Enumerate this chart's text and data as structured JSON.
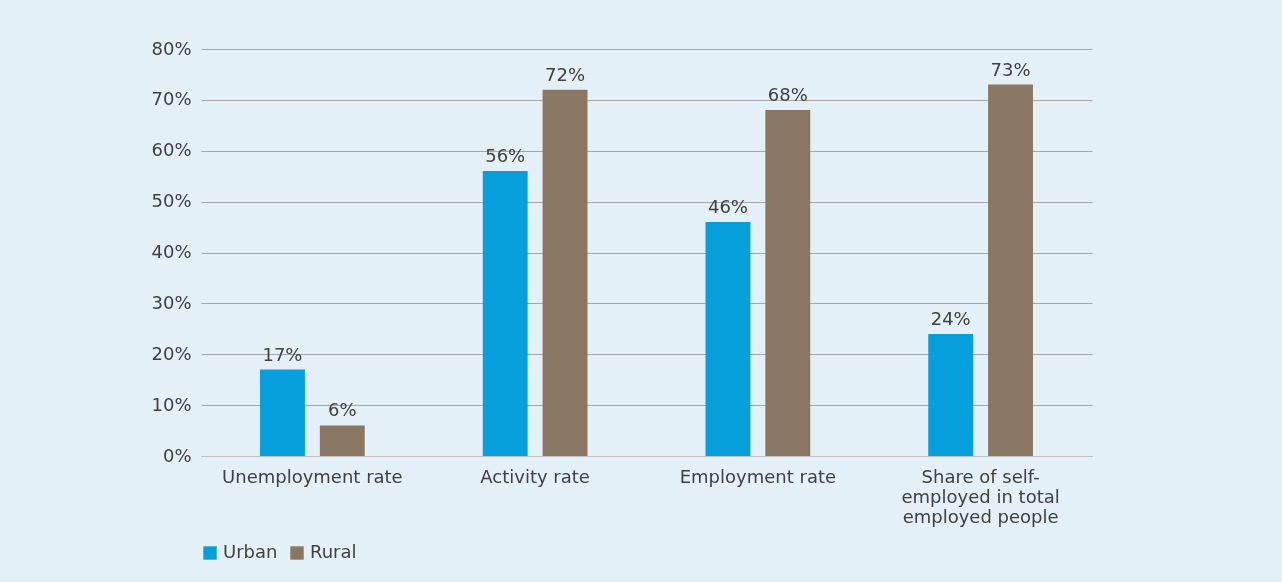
{
  "chart_data": {
    "type": "bar",
    "categories": [
      "Unemployment rate",
      "Activity rate",
      "Employment rate",
      "Share of self-employed in total employed people"
    ],
    "series": [
      {
        "name": "Urban",
        "color": "#069fdc",
        "values": [
          17,
          56,
          46,
          24
        ],
        "value_labels": [
          "17%",
          "56%",
          "46%",
          "24%"
        ]
      },
      {
        "name": "Rural",
        "color": "#8a7763",
        "values": [
          6,
          72,
          68,
          73
        ],
        "value_labels": [
          "6%",
          "72%",
          "68%",
          "73%"
        ]
      }
    ],
    "ylim": [
      0,
      80
    ],
    "yticks": [
      {
        "value": 0,
        "label": "0%"
      },
      {
        "value": 10,
        "label": "10%"
      },
      {
        "value": 20,
        "label": "20%"
      },
      {
        "value": 30,
        "label": "30%"
      },
      {
        "value": 40,
        "label": "40%"
      },
      {
        "value": 50,
        "label": "50%"
      },
      {
        "value": 60,
        "label": "60%"
      },
      {
        "value": 70,
        "label": "70%"
      },
      {
        "value": 80,
        "label": "80%"
      }
    ],
    "grid": "y",
    "legend": "bottom"
  }
}
